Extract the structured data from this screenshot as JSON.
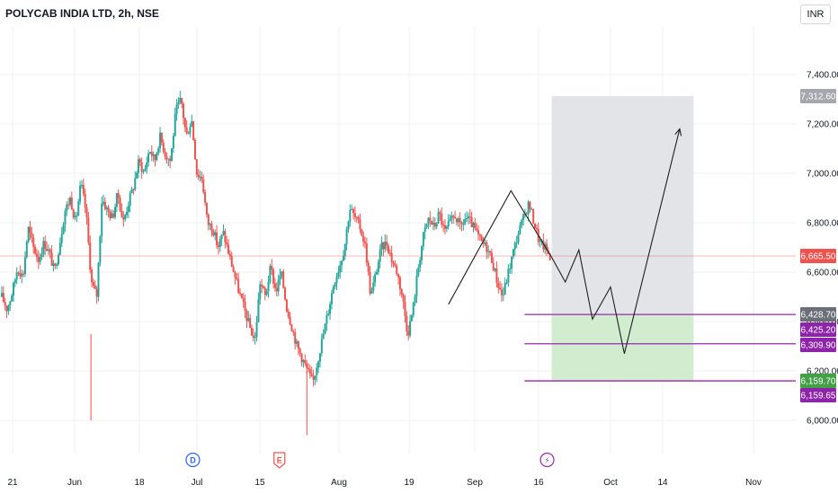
{
  "header": {
    "title": "POLYCAB INDIA LTD, 2h, NSE"
  },
  "currency": {
    "label": "INR"
  },
  "colors": {
    "up": "#26a69a",
    "down": "#ef5350",
    "wick": "#2f2f2f",
    "last_price": "#ef5350",
    "target_zone": "#e3e4e8",
    "stop_zone": "#d2ecd0",
    "support_line": "#9c27b0",
    "projection_line": "#1f1f1f",
    "grid": "#eef0f3"
  },
  "chart_data": {
    "type": "candlestick",
    "title": "POLYCAB INDIA LTD, 2h, NSE",
    "currency": "INR",
    "x_tick_labels": [
      "21",
      "Jun",
      "18",
      "Jul",
      "15",
      "Aug",
      "19",
      "Sep",
      "16",
      "Oct",
      "14",
      "Nov"
    ],
    "y_tick_labels": [
      "6,000.00",
      "6,200.00",
      "6,400.00",
      "6,600.00",
      "6,800.00",
      "7,000.00",
      "7,200.00",
      "7,400.00"
    ],
    "ylim": [
      5930,
      7520
    ],
    "grid": true,
    "price_series": [
      6500,
      6450,
      6520,
      6620,
      6580,
      6780,
      6700,
      6650,
      6720,
      6680,
      6600,
      6720,
      6850,
      6900,
      6800,
      6960,
      6840,
      6560,
      6500,
      6900,
      6850,
      6820,
      6920,
      6800,
      6880,
      6950,
      7050,
      7000,
      7100,
      7050,
      7150,
      7080,
      7050,
      7250,
      7300,
      7150,
      7220,
      7000,
      6980,
      6800,
      6780,
      6700,
      6760,
      6680,
      6600,
      6520,
      6450,
      6380,
      6320,
      6560,
      6500,
      6620,
      6520,
      6600,
      6460,
      6380,
      6300,
      6250,
      6200,
      6150,
      6250,
      6350,
      6450,
      6560,
      6620,
      6700,
      6860,
      6820,
      6780,
      6700,
      6500,
      6600,
      6700,
      6720,
      6650,
      6600,
      6500,
      6350,
      6450,
      6620,
      6750,
      6820,
      6780,
      6840,
      6760,
      6800,
      6830,
      6780,
      6820,
      6800,
      6760,
      6720,
      6700,
      6650,
      6560,
      6500,
      6590,
      6680,
      6760,
      6820,
      6880,
      6800,
      6720,
      6700,
      6665.5
    ],
    "price_levels": [
      {
        "label": "7,312.60",
        "value": 7312.6,
        "kind": "zone-top"
      },
      {
        "label": "6,665.50",
        "value": 6665.5,
        "kind": "last-price"
      },
      {
        "label": "6,428.70",
        "value": 6428.7,
        "kind": "entry"
      },
      {
        "label": "6,425.20",
        "value": 6425.2,
        "kind": "support"
      },
      {
        "label": "6,309.90",
        "value": 6309.9,
        "kind": "support"
      },
      {
        "label": "6,159.70",
        "value": 6159.7,
        "kind": "stop"
      },
      {
        "label": "6,159.65",
        "value": 6159.65,
        "kind": "support"
      }
    ],
    "position_zones": [
      {
        "name": "target",
        "top": 7312.6,
        "bottom": 6428.7
      },
      {
        "name": "stop",
        "top": 6428.7,
        "bottom": 6159.7
      }
    ],
    "pattern_path": [
      {
        "date": "Aug 26",
        "price": 6470
      },
      {
        "date": "Sep 9",
        "price": 6930
      },
      {
        "date": "Sep 18",
        "price": 6660
      }
    ],
    "projection_path": [
      {
        "date": "Sep 18",
        "price": 6660
      },
      {
        "date": "Sep 21",
        "price": 6560
      },
      {
        "date": "Sep 24",
        "price": 6690
      },
      {
        "date": "Sep 27",
        "price": 6410
      },
      {
        "date": "Oct 1",
        "price": 6540
      },
      {
        "date": "Oct 4",
        "price": 6270
      },
      {
        "date": "Oct 16",
        "price": 7180
      }
    ],
    "events": [
      {
        "label": "D",
        "type": "dividend",
        "date": "Jun 30"
      },
      {
        "label": "E",
        "type": "earnings",
        "date": "Jul 19"
      },
      {
        "label": "⚡",
        "type": "split",
        "date": "Sep 17"
      }
    ]
  }
}
